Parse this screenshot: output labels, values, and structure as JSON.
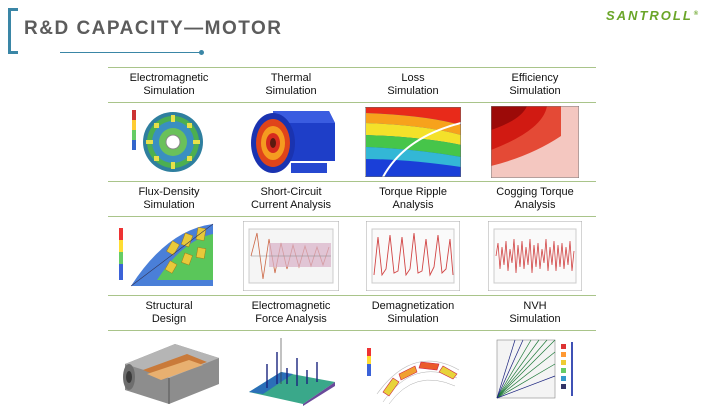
{
  "header": {
    "title": "R&D CAPACITY—MOTOR",
    "logo": "SANTROLL",
    "logo_mark": "®"
  },
  "rows": [
    {
      "items": [
        {
          "label_line1": "Electromagnetic",
          "label_line2": "Simulation",
          "figure": "motor-cross-section-field-plot"
        },
        {
          "label_line1": "Thermal",
          "label_line2": "Simulation",
          "figure": "motor-thermal-3d-model"
        },
        {
          "label_line1": "Loss",
          "label_line2": "Simulation",
          "figure": "loss-contour-map"
        },
        {
          "label_line1": "Efficiency",
          "label_line2": "Simulation",
          "figure": "efficiency-contour-map"
        }
      ]
    },
    {
      "items": [
        {
          "label_line1": "Flux-Density",
          "label_line2": "Simulation",
          "figure": "flux-density-sector-plot"
        },
        {
          "label_line1": "Short-Circuit",
          "label_line2": "Current Analysis",
          "figure": "short-circuit-current-waveform"
        },
        {
          "label_line1": "Torque Ripple",
          "label_line2": "Analysis",
          "figure": "torque-ripple-waveform"
        },
        {
          "label_line1": "Cogging Torque",
          "label_line2": "Analysis",
          "figure": "cogging-torque-waveform"
        }
      ]
    },
    {
      "items": [
        {
          "label_line1": "Structural",
          "label_line2": "Design",
          "figure": "motor-structural-cutaway"
        },
        {
          "label_line1": "Electromagnetic",
          "label_line2": "Force Analysis",
          "figure": "electromagnetic-force-3d-bars"
        },
        {
          "label_line1": "Demagnetization",
          "label_line2": "Simulation",
          "figure": "demagnetization-magnet-plot"
        },
        {
          "label_line1": "NVH",
          "label_line2": "Simulation",
          "figure": "nvh-campbell-diagram"
        }
      ]
    }
  ],
  "colors": {
    "accent": "#3a86a6",
    "brand": "#6aa528",
    "divider": "#a9c48a",
    "title_text": "#5c5c5c"
  }
}
